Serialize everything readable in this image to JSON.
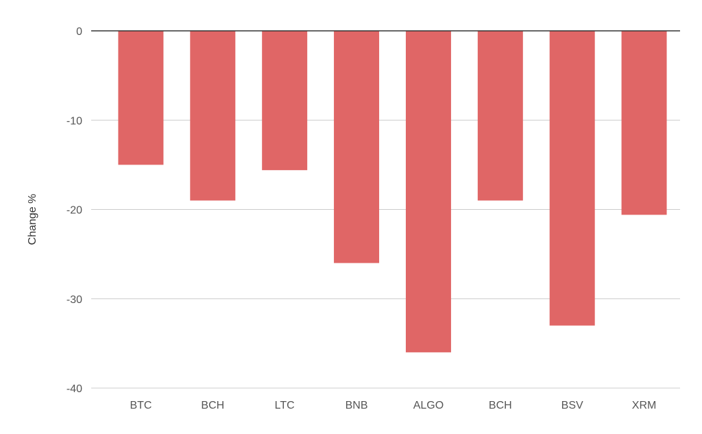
{
  "chart_data": {
    "type": "bar",
    "categories": [
      "BTC",
      "BCH",
      "LTC",
      "BNB",
      "ALGO",
      "BCH",
      "BSV",
      "XRM"
    ],
    "values": [
      -15,
      -19,
      -15.6,
      -26,
      -36,
      -19,
      -33,
      -20.6
    ],
    "ylabel": "Change %",
    "ylim": [
      -40,
      0
    ],
    "yticks": [
      0,
      -10,
      -20,
      -30,
      -40
    ],
    "bar_color": "#e06666",
    "grid": true,
    "legend": "none"
  }
}
